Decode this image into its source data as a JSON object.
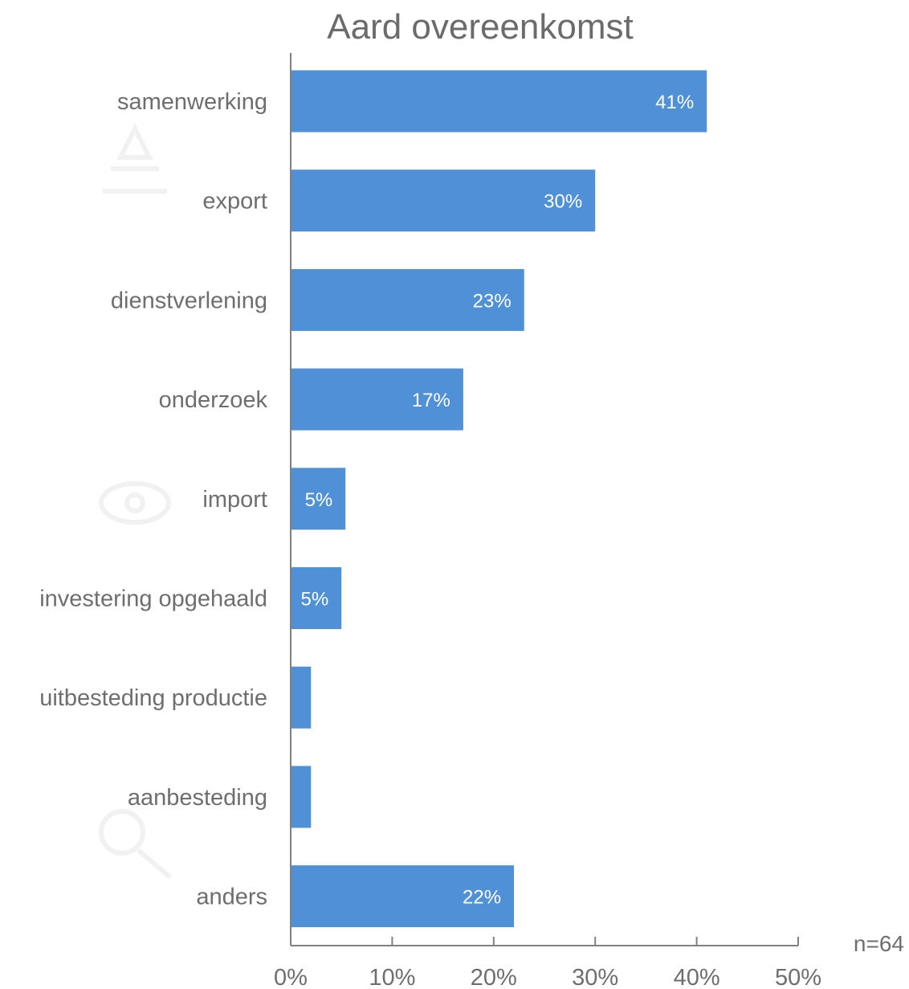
{
  "chart_data": {
    "type": "bar",
    "orientation": "horizontal",
    "title": "Aard overeenkomst",
    "categories": [
      "samenwerking",
      "export",
      "dienstverlening",
      "onderzoek",
      "import",
      "investering opgehaald",
      "uitbesteding productie",
      "aanbesteding",
      "anders"
    ],
    "values": [
      41,
      30,
      23,
      17,
      5.4,
      5,
      2,
      2,
      22
    ],
    "value_labels": [
      "41%",
      "30%",
      "23%",
      "17%",
      "5%",
      "5%",
      "",
      "",
      "22%"
    ],
    "x_ticks": [
      "0%",
      "10%",
      "20%",
      "30%",
      "40%",
      "50%"
    ],
    "xlim": [
      0,
      50
    ],
    "xlabel": "",
    "ylabel": "",
    "grid": false,
    "legend": "none",
    "note": "n=64",
    "bar_color": "#4f90d6"
  }
}
